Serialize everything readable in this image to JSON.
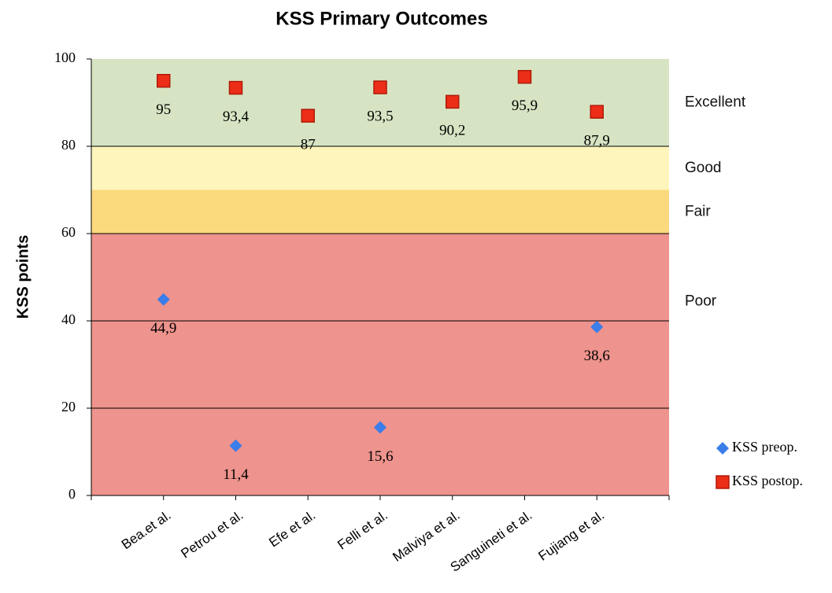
{
  "chart_data": {
    "type": "scatter",
    "title": "KSS Primary Outcomes",
    "y_label": "KSS points",
    "categories": [
      "Bea.et al.",
      "Petrou et al.",
      "Efe et al.",
      "Felli et al.",
      "Malviya et al.",
      "Sanguineti et al.",
      "Fujiang et al."
    ],
    "series": [
      {
        "name": "KSS preop.",
        "color": "#3b7de9",
        "marker": "diamond",
        "values": [
          44.9,
          11.4,
          null,
          15.6,
          null,
          null,
          38.6
        ],
        "value_labels": [
          "44,9",
          "11,4",
          null,
          "15,6",
          null,
          null,
          "38,6"
        ]
      },
      {
        "name": "KSS postop.",
        "color": "#ec2d17",
        "marker": "square",
        "values": [
          95,
          93.4,
          87,
          93.5,
          90.2,
          95.9,
          87.9
        ],
        "value_labels": [
          "95",
          "93,4",
          "87",
          "93,5",
          "90,2",
          "95,9",
          "87,9"
        ]
      }
    ],
    "bands": [
      {
        "label": "Excellent",
        "from": 80,
        "to": 100,
        "color": "#d6e4c3"
      },
      {
        "label": "Good",
        "from": 70,
        "to": 80,
        "color": "#fdf5bb"
      },
      {
        "label": "Fair",
        "from": 60,
        "to": 70,
        "color": "#fbd97d"
      },
      {
        "label": "Poor",
        "from": 0,
        "to": 60,
        "color": "#ee938d"
      }
    ],
    "ylim": [
      0,
      100
    ],
    "yticks": [
      0,
      20,
      40,
      60,
      80,
      100
    ],
    "grid": true
  }
}
